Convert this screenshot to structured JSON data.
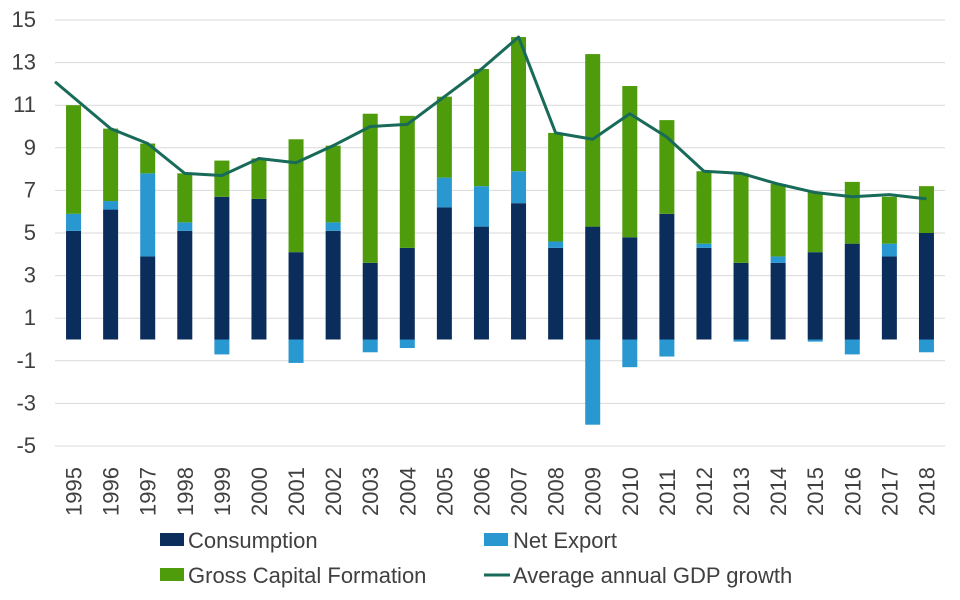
{
  "chart_data": {
    "type": "bar",
    "stacked": true,
    "categories": [
      "1995",
      "1996",
      "1997",
      "1998",
      "1999",
      "2000",
      "2001",
      "2002",
      "2003",
      "2004",
      "2005",
      "2006",
      "2007",
      "2008",
      "2009",
      "2010",
      "2011",
      "2012",
      "2013",
      "2014",
      "2015",
      "2016",
      "2017",
      "2018"
    ],
    "series": [
      {
        "name": "Consumption",
        "kind": "bar",
        "color": "#0b2d5b",
        "values": [
          5.1,
          6.1,
          3.9,
          5.1,
          6.7,
          6.6,
          4.1,
          5.1,
          3.6,
          4.3,
          6.2,
          5.3,
          6.4,
          4.3,
          5.3,
          4.8,
          5.9,
          4.3,
          3.6,
          3.6,
          4.1,
          4.5,
          3.9,
          5.0
        ]
      },
      {
        "name": "Net Export",
        "kind": "bar",
        "color": "#2a98d0",
        "values": [
          0.8,
          0.4,
          3.9,
          0.4,
          -0.7,
          0.0,
          -1.1,
          0.4,
          -0.6,
          -0.4,
          1.4,
          1.9,
          1.5,
          0.3,
          -4.0,
          -1.3,
          -0.8,
          0.2,
          -0.1,
          0.3,
          -0.1,
          -0.7,
          0.6,
          -0.6
        ]
      },
      {
        "name": "Gross Capital Formation",
        "kind": "bar",
        "color": "#4e9c0c",
        "values": [
          5.1,
          3.4,
          1.4,
          2.3,
          1.7,
          1.9,
          5.3,
          3.6,
          7.0,
          6.2,
          3.8,
          5.5,
          6.3,
          5.1,
          8.1,
          7.1,
          4.4,
          3.4,
          4.2,
          3.4,
          2.8,
          2.9,
          2.2,
          2.2
        ]
      },
      {
        "name": "Average annual GDP growth",
        "kind": "line",
        "color": "#186a59",
        "values": [
          12.1,
          9.9,
          9.2,
          7.8,
          7.7,
          8.5,
          8.3,
          9.1,
          10.0,
          10.1,
          11.4,
          12.7,
          14.2,
          9.7,
          9.4,
          10.6,
          9.5,
          7.9,
          7.8,
          7.3,
          6.9,
          6.7,
          6.8,
          6.6
        ]
      }
    ],
    "y_ticks": [
      "15",
      "13",
      "11",
      "9",
      "7",
      "5",
      "3",
      "1",
      "-1",
      "-3",
      "-5"
    ],
    "ylim": [
      -5,
      15
    ],
    "grid": true,
    "legend_position": "bottom"
  },
  "legend": {
    "consumption": "Consumption",
    "net_export": "Net Export",
    "gross_capital_formation": "Gross Capital Formation",
    "gdp_growth": "Average annual GDP growth"
  },
  "colors": {
    "consumption": "#0b2d5b",
    "net_export": "#2a98d0",
    "gross_capital_formation": "#4e9c0c",
    "gdp_growth": "#186a59",
    "grid": "#d9d9d9"
  }
}
